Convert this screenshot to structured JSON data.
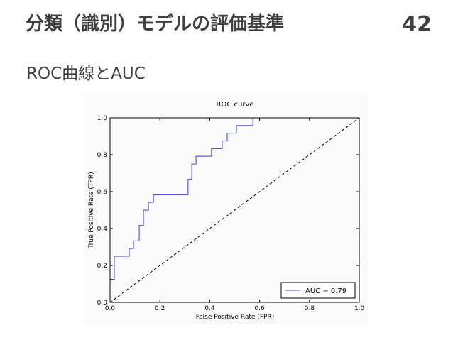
{
  "header": {
    "title": "分類（識別）モデルの評価基準",
    "page_number": "42",
    "subtitle": "ROC曲線とAUC"
  },
  "chart_data": {
    "type": "line",
    "title": "ROC curve",
    "x_label": "False Positive Rate (FPR)",
    "y_label": "True Positive Rate (TPR)",
    "series": [
      {
        "name": "AUC = 0.79",
        "color": "#3b3bd6",
        "style": "solid",
        "x": [
          0,
          0,
          0.017,
          0.017,
          0.077,
          0.077,
          0.094,
          0.094,
          0.117,
          0.117,
          0.134,
          0.134,
          0.154,
          0.154,
          0.174,
          0.174,
          0.313,
          0.313,
          0.328,
          0.328,
          0.345,
          0.345,
          0.407,
          0.407,
          0.45,
          0.45,
          0.47,
          0.47,
          0.507,
          0.507,
          0.573,
          0.573,
          1
        ],
        "values": [
          0,
          0.125,
          0.125,
          0.25,
          0.25,
          0.292,
          0.292,
          0.333,
          0.333,
          0.417,
          0.417,
          0.5,
          0.5,
          0.542,
          0.542,
          0.583,
          0.583,
          0.667,
          0.667,
          0.75,
          0.75,
          0.792,
          0.792,
          0.833,
          0.833,
          0.875,
          0.875,
          0.917,
          0.917,
          0.958,
          0.958,
          1,
          1
        ]
      },
      {
        "color": "#000000",
        "style": "dashed",
        "x": [
          0,
          1
        ],
        "values": [
          0,
          1
        ]
      }
    ],
    "xlim": [
      0,
      1
    ],
    "ylim": [
      0,
      1
    ],
    "xticks": [
      {
        "value": 0,
        "label": "0.0"
      },
      0.2,
      0.4,
      0.6,
      0.8,
      {
        "value": 1,
        "label": "1.0"
      }
    ],
    "yticks": [
      {
        "value": 0,
        "label": "0.0"
      },
      0.2,
      0.4,
      0.6,
      0.8,
      {
        "value": 1,
        "label": "1.0"
      }
    ],
    "legend": "lower right",
    "grid": false
  }
}
